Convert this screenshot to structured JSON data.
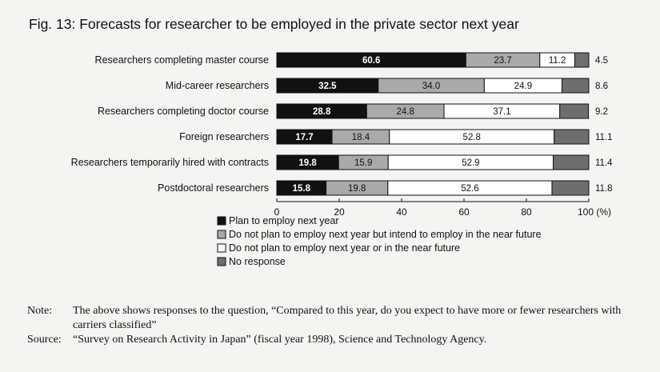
{
  "chart_data": {
    "type": "bar",
    "stacked": true,
    "orientation": "horizontal",
    "title": "Fig. 13: Forecasts for researcher to be employed in the private sector next year",
    "categories": [
      "Researchers completing master course",
      "Mid-career researchers",
      "Researchers completing doctor course",
      "Foreign researchers",
      "Researchers temporarily hired with contracts",
      "Postdoctoral researchers"
    ],
    "series": [
      {
        "name": "Plan to employ next year",
        "color": "#111111",
        "label_color": "#ffffff",
        "values": [
          60.6,
          32.5,
          28.8,
          17.7,
          19.8,
          15.8
        ]
      },
      {
        "name": "Do not plan to employ next year but intend to employ in the near future",
        "color": "#a9a9a9",
        "label_color": "#111111",
        "values": [
          23.7,
          34.0,
          24.8,
          18.4,
          15.9,
          19.8
        ]
      },
      {
        "name": "Do not plan to employ next year or in the near future",
        "color": "#ffffff",
        "label_color": "#111111",
        "values": [
          11.2,
          24.9,
          37.1,
          52.8,
          52.9,
          52.6
        ]
      },
      {
        "name": "No response",
        "color": "#6e6e6e",
        "label_color": "#111111",
        "values": [
          4.5,
          8.6,
          9.2,
          11.1,
          11.4,
          11.8
        ]
      }
    ],
    "value_labels": [
      [
        "60.6",
        "23.7",
        "11.2",
        "4.5"
      ],
      [
        "32.5",
        "34.0",
        "24.9",
        "8.6"
      ],
      [
        "28.8",
        "24.8",
        "37.1",
        "9.2"
      ],
      [
        "17.7",
        "18.4",
        "52.8",
        "11.1"
      ],
      [
        "19.8",
        "15.9",
        "52.9",
        "11.4"
      ],
      [
        "15.8",
        "19.8",
        "52.6",
        "11.8"
      ]
    ],
    "xlim": [
      0,
      100
    ],
    "xticks": [
      "0",
      "20",
      "40",
      "60",
      "80",
      "100 (%)"
    ],
    "xtick_values": [
      0,
      20,
      40,
      60,
      80,
      100
    ],
    "legend_position": "bottom-left",
    "grid": false
  },
  "notes": {
    "note_key": "Note:",
    "note_text": "The above shows responses to the question, “Compared to this year, do you expect to have more or fewer researchers with carriers classified”",
    "source_key": "Source:",
    "source_text": "“Survey on Research Activity in Japan” (fiscal year 1998), Science and Technology Agency."
  }
}
